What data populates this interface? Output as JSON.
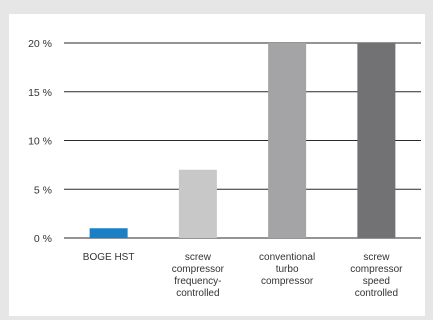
{
  "chart_data": {
    "type": "bar",
    "categories": [
      [
        "BOGE HST"
      ],
      [
        "screw",
        "compressor",
        "frequency-",
        "controlled"
      ],
      [
        "conventional",
        "turbo",
        "compressor"
      ],
      [
        "screw",
        "compressor",
        "speed",
        "controlled"
      ]
    ],
    "values": [
      1,
      7,
      20,
      20
    ],
    "bar_colors": [
      "#1a7fc4",
      "#c8c8c8",
      "#a4a4a6",
      "#727274"
    ],
    "y_ticks": [
      {
        "value": 0,
        "label": "0 %"
      },
      {
        "value": 5,
        "label": "5 %"
      },
      {
        "value": 10,
        "label": "10 %"
      },
      {
        "value": 15,
        "label": "15 %"
      },
      {
        "value": 20,
        "label": "20 %"
      }
    ],
    "ylim": [
      0,
      20
    ],
    "grid": true,
    "legend": "none"
  }
}
